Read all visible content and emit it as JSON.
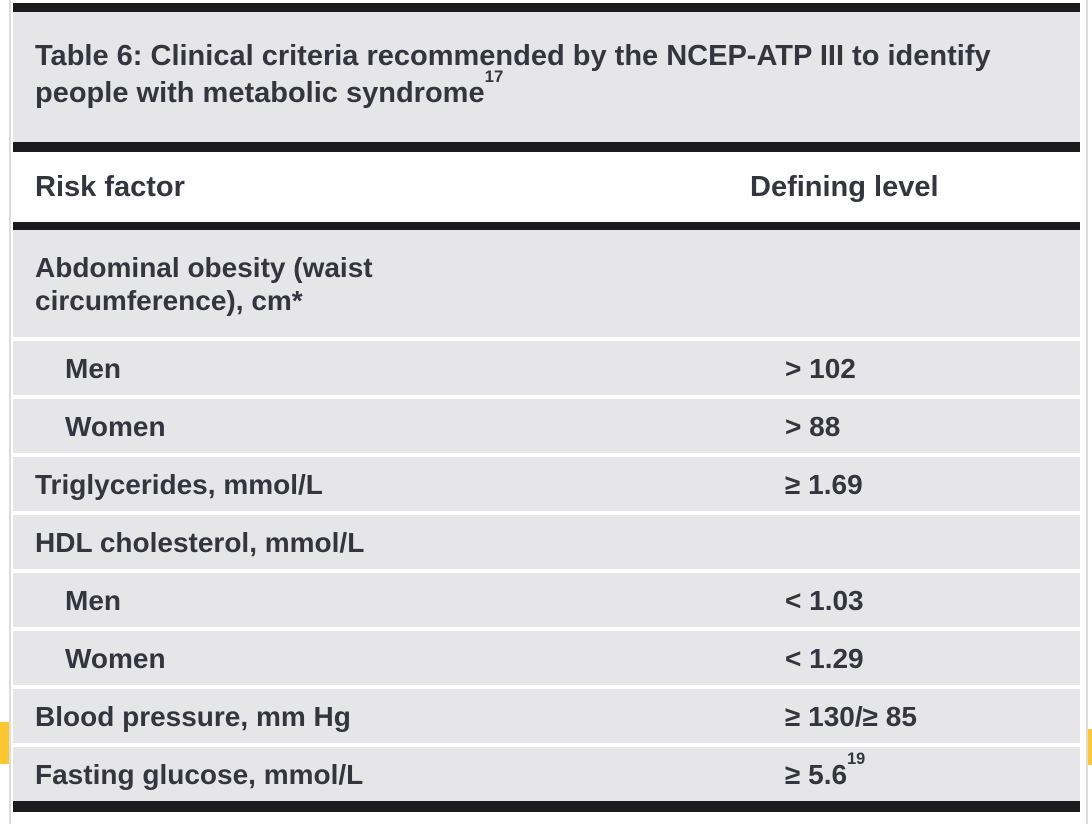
{
  "colors": {
    "row_grey": "#e6e6e8",
    "rule_black": "#1b1b1d",
    "text": "#35353f",
    "accent_yellow": "#fdc72f",
    "page_edge_line": "#dcdcde"
  },
  "table": {
    "title_prefix": "Table 6:",
    "title_rest": " Clinical criteria recommended by the NCEP-ATP III to identify people with metabolic syndrome",
    "title_superscript": "17",
    "columns": {
      "risk_factor": "Risk factor",
      "defining_level": "Defining level"
    },
    "rows": [
      {
        "label": "Abdominal obesity (waist circumference), cm*",
        "value": "",
        "indent": false
      },
      {
        "label": "Men",
        "value": "> 102",
        "indent": true
      },
      {
        "label": "Women",
        "value": "> 88",
        "indent": true
      },
      {
        "label": "Triglycerides, mmol/L",
        "value": "≥ 1.69",
        "indent": false
      },
      {
        "label": "HDL cholesterol, mmol/L",
        "value": "",
        "indent": false
      },
      {
        "label": "Men",
        "value": "< 1.03",
        "indent": true
      },
      {
        "label": "Women",
        "value": "< 1.29",
        "indent": true
      },
      {
        "label": "Blood pressure, mm Hg",
        "value": "≥ 130/≥ 85",
        "indent": false
      },
      {
        "label": "Fasting glucose, mmol/L",
        "value": "≥ 5.6",
        "value_superscript": "19",
        "indent": false
      }
    ]
  }
}
